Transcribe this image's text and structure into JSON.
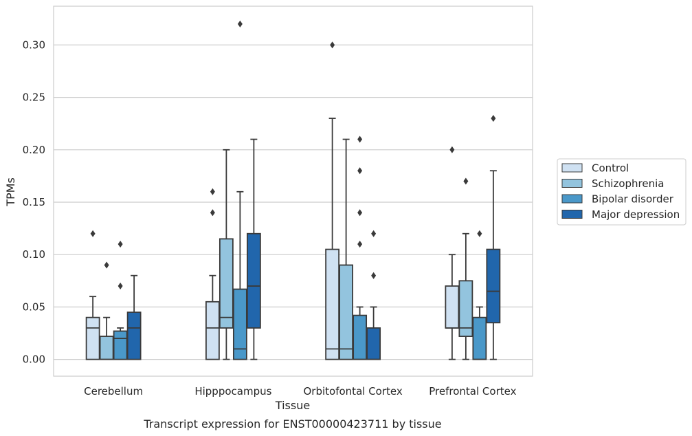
{
  "chart_data": {
    "type": "box",
    "xlabel": "Tissue",
    "ylabel": "TPMs",
    "caption": "Transcript expression for ENST00000423711 by tissue",
    "ylim": [
      -0.016,
      0.337
    ],
    "yticks": [
      "0.00",
      "0.05",
      "0.10",
      "0.15",
      "0.20",
      "0.25",
      "0.30"
    ],
    "grid": "horizontal",
    "legend_position": "right, outside plot",
    "categories": [
      "Cerebellum",
      "Hipppocampus",
      "Orbitofontal Cortex",
      "Prefrontal Cortex"
    ],
    "series": [
      {
        "name": "Control",
        "color": "#cfe1f2",
        "boxes": [
          {
            "whisker_low": 0.0,
            "q1": 0.0,
            "median": 0.03,
            "q3": 0.04,
            "whisker_high": 0.06,
            "outliers": [
              0.12
            ]
          },
          {
            "whisker_low": 0.0,
            "q1": 0.0,
            "median": 0.03,
            "q3": 0.055,
            "whisker_high": 0.08,
            "outliers": [
              0.14,
              0.16
            ]
          },
          {
            "whisker_low": 0.0,
            "q1": 0.0,
            "median": 0.01,
            "q3": 0.105,
            "whisker_high": 0.23,
            "outliers": [
              0.3
            ]
          },
          {
            "whisker_low": 0.0,
            "q1": 0.03,
            "median": 0.03,
            "q3": 0.07,
            "whisker_high": 0.1,
            "outliers": [
              0.2
            ]
          }
        ]
      },
      {
        "name": "Schizophrenia",
        "color": "#93c4de",
        "boxes": [
          {
            "whisker_low": 0.0,
            "q1": 0.0,
            "median": 0.0,
            "q3": 0.022,
            "whisker_high": 0.04,
            "outliers": [
              0.09
            ]
          },
          {
            "whisker_low": 0.0,
            "q1": 0.03,
            "median": 0.04,
            "q3": 0.115,
            "whisker_high": 0.2,
            "outliers": []
          },
          {
            "whisker_low": 0.0,
            "q1": 0.0,
            "median": 0.01,
            "q3": 0.09,
            "whisker_high": 0.21,
            "outliers": []
          },
          {
            "whisker_low": 0.0,
            "q1": 0.022,
            "median": 0.03,
            "q3": 0.075,
            "whisker_high": 0.12,
            "outliers": [
              0.17
            ]
          }
        ]
      },
      {
        "name": "Bipolar disorder",
        "color": "#4a98c9",
        "boxes": [
          {
            "whisker_low": 0.0,
            "q1": 0.0,
            "median": 0.02,
            "q3": 0.027,
            "whisker_high": 0.03,
            "outliers": [
              0.07,
              0.11
            ]
          },
          {
            "whisker_low": 0.0,
            "q1": 0.0,
            "median": 0.01,
            "q3": 0.067,
            "whisker_high": 0.16,
            "outliers": [
              0.32
            ]
          },
          {
            "whisker_low": 0.0,
            "q1": 0.0,
            "median": 0.0,
            "q3": 0.042,
            "whisker_high": 0.05,
            "outliers": [
              0.11,
              0.14,
              0.18,
              0.21
            ]
          },
          {
            "whisker_low": 0.0,
            "q1": 0.0,
            "median": 0.0,
            "q3": 0.04,
            "whisker_high": 0.05,
            "outliers": [
              0.12
            ]
          }
        ]
      },
      {
        "name": "Major depression",
        "color": "#2166ac",
        "boxes": [
          {
            "whisker_low": 0.0,
            "q1": 0.0,
            "median": 0.03,
            "q3": 0.045,
            "whisker_high": 0.08,
            "outliers": []
          },
          {
            "whisker_low": 0.0,
            "q1": 0.03,
            "median": 0.07,
            "q3": 0.12,
            "whisker_high": 0.21,
            "outliers": []
          },
          {
            "whisker_low": 0.0,
            "q1": 0.0,
            "median": 0.0,
            "q3": 0.03,
            "whisker_high": 0.05,
            "outliers": [
              0.08,
              0.12
            ]
          },
          {
            "whisker_low": 0.0,
            "q1": 0.035,
            "median": 0.065,
            "q3": 0.105,
            "whisker_high": 0.18,
            "outliers": [
              0.23
            ]
          }
        ]
      }
    ]
  }
}
